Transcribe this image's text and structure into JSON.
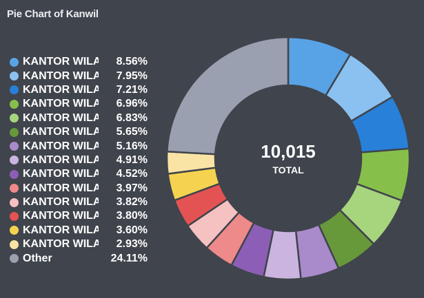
{
  "panel": {
    "title": "Pie Chart of Kanwil"
  },
  "chart_data": {
    "type": "pie",
    "title": "Pie Chart of Kanwil",
    "donut": true,
    "center": {
      "value": "10,015",
      "label": "TOTAL"
    },
    "legend_position": "left",
    "slices": [
      {
        "label": "KANTOR WILA",
        "percent": 8.56,
        "display": "8.56%",
        "color": "#58a3e6"
      },
      {
        "label": "KANTOR WILA",
        "percent": 7.95,
        "display": "7.95%",
        "color": "#8bc1f0"
      },
      {
        "label": "KANTOR WILA",
        "percent": 7.21,
        "display": "7.21%",
        "color": "#2880d8"
      },
      {
        "label": "KANTOR WILA",
        "percent": 6.96,
        "display": "6.96%",
        "color": "#86c04a"
      },
      {
        "label": "KANTOR WILA",
        "percent": 6.83,
        "display": "6.83%",
        "color": "#a6d57e"
      },
      {
        "label": "KANTOR WILA",
        "percent": 5.65,
        "display": "5.65%",
        "color": "#67983a"
      },
      {
        "label": "KANTOR WILA",
        "percent": 5.16,
        "display": "5.16%",
        "color": "#a98acb"
      },
      {
        "label": "KANTOR WILA",
        "percent": 4.91,
        "display": "4.91%",
        "color": "#cbb5e0"
      },
      {
        "label": "KANTOR WILA",
        "percent": 4.52,
        "display": "4.52%",
        "color": "#8c5eb5"
      },
      {
        "label": "KANTOR WILA",
        "percent": 3.97,
        "display": "3.97%",
        "color": "#ee8a8a"
      },
      {
        "label": "KANTOR WILA",
        "percent": 3.82,
        "display": "3.82%",
        "color": "#f6c1c1"
      },
      {
        "label": "KANTOR WILA",
        "percent": 3.8,
        "display": "3.80%",
        "color": "#e45353"
      },
      {
        "label": "KANTOR WILA",
        "percent": 3.6,
        "display": "3.60%",
        "color": "#f5d350"
      },
      {
        "label": "KANTOR WILA",
        "percent": 2.93,
        "display": "2.93%",
        "color": "#f9e4a6"
      },
      {
        "label": "Other",
        "percent": 24.11,
        "display": "24.11%",
        "color": "#9aa0b0"
      }
    ]
  }
}
